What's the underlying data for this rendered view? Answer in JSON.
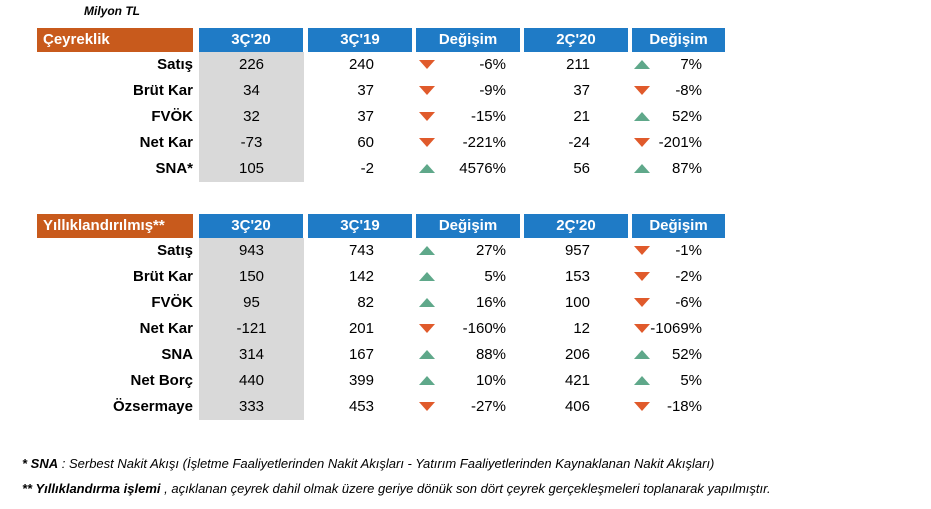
{
  "unit_label": "Milyon TL",
  "quarterly": {
    "header": [
      "Çeyreklik",
      "3Ç'20",
      "3Ç'19",
      "Değişim",
      "2Ç'20",
      "Değişim"
    ],
    "rows": [
      {
        "label": "Satış",
        "cur": "226",
        "prev_year": "240",
        "change_y": "-6%",
        "dir_y": "down",
        "prev_q": "211",
        "change_q": "7%",
        "dir_q": "up"
      },
      {
        "label": "Brüt Kar",
        "cur": "34",
        "prev_year": "37",
        "change_y": "-9%",
        "dir_y": "down",
        "prev_q": "37",
        "change_q": "-8%",
        "dir_q": "down"
      },
      {
        "label": "FVÖK",
        "cur": "32",
        "prev_year": "37",
        "change_y": "-15%",
        "dir_y": "down",
        "prev_q": "21",
        "change_q": "52%",
        "dir_q": "up"
      },
      {
        "label": "Net Kar",
        "cur": "-73",
        "prev_year": "60",
        "change_y": "-221%",
        "dir_y": "down",
        "prev_q": "-24",
        "change_q": "-201%",
        "dir_q": "down"
      },
      {
        "label": "SNA*",
        "cur": "105",
        "prev_year": "-2",
        "change_y": "4576%",
        "dir_y": "up",
        "prev_q": "56",
        "change_q": "87%",
        "dir_q": "up"
      }
    ]
  },
  "annualized": {
    "header": [
      "Yıllıklandırılmış**",
      "3Ç'20",
      "3Ç'19",
      "Değişim",
      "2Ç'20",
      "Değişim"
    ],
    "rows": [
      {
        "label": "Satış",
        "cur": "943",
        "prev_year": "743",
        "change_y": "27%",
        "dir_y": "up",
        "prev_q": "957",
        "change_q": "-1%",
        "dir_q": "down"
      },
      {
        "label": "Brüt Kar",
        "cur": "150",
        "prev_year": "142",
        "change_y": "5%",
        "dir_y": "up",
        "prev_q": "153",
        "change_q": "-2%",
        "dir_q": "down"
      },
      {
        "label": "FVÖK",
        "cur": "95",
        "prev_year": "82",
        "change_y": "16%",
        "dir_y": "up",
        "prev_q": "100",
        "change_q": "-6%",
        "dir_q": "down"
      },
      {
        "label": "Net Kar",
        "cur": "-121",
        "prev_year": "201",
        "change_y": "-160%",
        "dir_y": "down",
        "prev_q": "12",
        "change_q": "-1069%",
        "dir_q": "down"
      },
      {
        "label": "SNA",
        "cur": "314",
        "prev_year": "167",
        "change_y": "88%",
        "dir_y": "up",
        "prev_q": "206",
        "change_q": "52%",
        "dir_q": "up"
      },
      {
        "label": "Net Borç",
        "cur": "440",
        "prev_year": "399",
        "change_y": "10%",
        "dir_y": "up",
        "prev_q": "421",
        "change_q": "5%",
        "dir_q": "up"
      },
      {
        "label": "Özsermaye",
        "cur": "333",
        "prev_year": "453",
        "change_y": "-27%",
        "dir_y": "down",
        "prev_q": "406",
        "change_q": "-18%",
        "dir_q": "down"
      }
    ]
  },
  "footnotes": {
    "note1_key": "* SNA",
    "note1_text": " : Serbest Nakit Akışı (İşletme Faaliyetlerinden Nakit Akışları - Yatırım Faaliyetlerinden Kaynaklanan Nakit Akışları)",
    "note2_key": "** Yıllıklandırma işlemi",
    "note2_text": " , açıklanan çeyrek dahil olmak üzere geriye dönük son dört çeyrek gerçekleşmeleri toplanarak yapılmıştır."
  },
  "colors": {
    "header_orange": "#c85a1c",
    "header_blue": "#1f7bc6",
    "current_column_bg": "#d9d9d9",
    "arrow_down": "#e05a2b",
    "arrow_up": "#5fa88a"
  }
}
